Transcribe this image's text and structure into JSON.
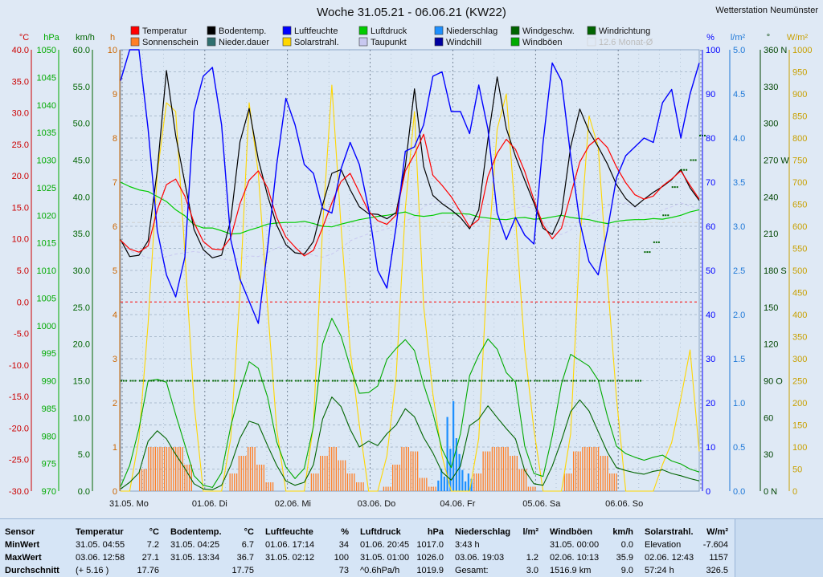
{
  "header": {
    "title": "Woche 31.05.21 - 06.06.21 (KW22)",
    "station": "Wetterstation Neumünster"
  },
  "legend": [
    {
      "label": "Temperatur",
      "color": "#ff0000"
    },
    {
      "label": "Bodentemp.",
      "color": "#000000"
    },
    {
      "label": "Luftfeuchte",
      "color": "#0000ff"
    },
    {
      "label": "Luftdruck",
      "color": "#00cc00"
    },
    {
      "label": "Niederschlag",
      "color": "#1e90ff"
    },
    {
      "label": "Windgeschw.",
      "color": "#006400"
    },
    {
      "label": "Windrichtung",
      "color": "#006400"
    },
    {
      "label": "Sonnenschein",
      "color": "#ff7f27"
    },
    {
      "label": "Nieder.dauer",
      "color": "#2f6f6f"
    },
    {
      "label": "Solarstrahl.",
      "color": "#ffd700"
    },
    {
      "label": "Taupunkt",
      "color": "#c8c8f0"
    },
    {
      "label": "Windchill",
      "color": "#0000a0"
    },
    {
      "label": "Windböen",
      "color": "#00aa00"
    },
    {
      "label": "12.6 Monat-Ø",
      "color": "#cfcfcf"
    }
  ],
  "axis_units": {
    "temp": "°C",
    "press": "hPa",
    "wind": "km/h",
    "sun": "h",
    "hum": "%",
    "rain": "l/m²",
    "dir": "°",
    "solar": "W/m²"
  },
  "chart_data": {
    "type": "line",
    "title": "Woche 31.05.21 - 06.06.21 (KW22)",
    "x_labels": [
      "31.05. Mo",
      "01.06. Di",
      "02.06. Mi",
      "03.06. Do",
      "04.06. Fr",
      "05.06. Sa",
      "06.06. So"
    ],
    "axes": {
      "temp": {
        "unit": "°C",
        "range": [
          -30,
          40
        ],
        "ticks": [
          "40.0",
          "35.0",
          "30.0",
          "25.0",
          "20.0",
          "15.0",
          "10.0",
          "5.0",
          "0.0",
          "-5.0",
          "-10.0",
          "-15.0",
          "-20.0",
          "-25.0",
          "-30.0"
        ]
      },
      "press": {
        "unit": "hPa",
        "range": [
          970,
          1050
        ],
        "ticks": [
          "1050",
          "1045",
          "1040",
          "1035",
          "1030",
          "1025",
          "1020",
          "1015",
          "1010",
          "1005",
          "1000",
          "995",
          "990",
          "985",
          "980",
          "975",
          "970"
        ]
      },
      "wind": {
        "unit": "km/h",
        "range": [
          0,
          60
        ],
        "ticks": [
          "60.0",
          "55.0",
          "50.0",
          "45.0",
          "40.0",
          "35.0",
          "30.0",
          "25.0",
          "20.0",
          "15.0",
          "10.0",
          "5.0",
          "0.0"
        ]
      },
      "sun": {
        "unit": "h",
        "range": [
          0,
          10
        ],
        "ticks": [
          "10",
          "9",
          "8",
          "7",
          "6",
          "5",
          "4",
          "3",
          "2",
          "1",
          "0"
        ]
      },
      "hum": {
        "unit": "%",
        "range": [
          0,
          100
        ],
        "ticks": [
          "100",
          "90",
          "80",
          "70",
          "60",
          "50",
          "40",
          "30",
          "20",
          "10",
          "0"
        ]
      },
      "rain": {
        "unit": "l/m²",
        "range": [
          0,
          5
        ],
        "ticks": [
          "5.0",
          "4.5",
          "4.0",
          "3.5",
          "3.0",
          "2.5",
          "2.0",
          "1.5",
          "1.0",
          "0.5",
          "0.0"
        ]
      },
      "dir": {
        "unit": "°",
        "range": [
          0,
          360
        ],
        "ticks": [
          "360 N",
          "330",
          "300",
          "270 W",
          "240",
          "210",
          "180 S",
          "150",
          "120",
          "90 O",
          "60",
          "30",
          "0 N"
        ]
      },
      "solar": {
        "unit": "W/m²",
        "range": [
          0,
          1000
        ],
        "ticks": [
          "1000",
          "950",
          "900",
          "850",
          "800",
          "750",
          "700",
          "650",
          "600",
          "550",
          "500",
          "450",
          "400",
          "350",
          "300",
          "250",
          "200",
          "150",
          "100",
          "50",
          "0"
        ]
      }
    },
    "series": [
      {
        "name": "Temperatur",
        "axis": "temp",
        "color": "#ff0000",
        "values": [
          9.8,
          8.4,
          7.9,
          8.9,
          14.6,
          18.6,
          19.5,
          16.8,
          12.6,
          9.6,
          8.4,
          8.3,
          10.2,
          15.6,
          19.3,
          20.8,
          18.1,
          13.4,
          10.3,
          8.7,
          7.3,
          8.2,
          11.8,
          15.7,
          19.1,
          20.4,
          17.4,
          14.4,
          12.9,
          12.3,
          13.8,
          20.8,
          23.4,
          26.6,
          20.1,
          18.5,
          16.7,
          14.3,
          11.9,
          13.1,
          19.9,
          23.6,
          25.8,
          24.2,
          20.7,
          16.2,
          12.2,
          10.0,
          11.7,
          17.0,
          22.2,
          24.8,
          26.0,
          24.5,
          21.4,
          18.9,
          17.0,
          16.3,
          16.8,
          18.4,
          19.5,
          20.8,
          18.5,
          16.3
        ]
      },
      {
        "name": "Bodentemp.",
        "axis": "temp",
        "color": "#000000",
        "values": [
          9.9,
          7.2,
          7.4,
          9.7,
          20.9,
          36.7,
          26.4,
          18.9,
          11.5,
          8.3,
          7.0,
          7.4,
          13.0,
          25.4,
          30.7,
          22.6,
          16.9,
          12.2,
          9.1,
          7.8,
          7.6,
          9.6,
          15.4,
          20.4,
          21.0,
          17.8,
          15.1,
          14.0,
          13.9,
          13.2,
          14.2,
          21.5,
          33.8,
          21.5,
          16.9,
          15.6,
          14.6,
          13.4,
          11.6,
          14.6,
          25.8,
          35.7,
          27.5,
          23.1,
          19.3,
          15.7,
          11.7,
          10.7,
          14.0,
          24.6,
          30.6,
          27.1,
          24.6,
          21.9,
          18.6,
          16.4,
          15.1,
          16.3,
          17.4,
          18.3,
          19.4,
          21.0,
          18.1,
          16.1
        ]
      },
      {
        "name": "Luftfeuchte",
        "axis": "hum",
        "color": "#0000ff",
        "values": [
          93,
          100,
          100,
          82,
          59,
          49,
          44,
          53,
          86,
          94,
          96,
          83,
          57,
          48,
          43,
          38,
          55,
          74,
          89,
          83,
          74,
          72,
          64,
          63,
          73,
          79,
          74,
          64,
          50,
          46,
          60,
          77,
          78,
          83,
          94,
          95,
          86,
          86,
          81,
          92,
          82,
          63,
          57,
          62,
          58,
          56,
          79,
          97,
          93,
          76,
          61,
          52,
          49,
          59,
          71,
          76,
          78,
          80,
          79,
          88,
          91,
          80,
          90,
          97
        ]
      },
      {
        "name": "Luftdruck",
        "axis": "press",
        "color": "#00cc00",
        "values": [
          1026.0,
          1025.2,
          1024.6,
          1024.3,
          1023.4,
          1022.5,
          1021.0,
          1019.9,
          1018.3,
          1017.7,
          1017.7,
          1017.2,
          1016.6,
          1016.7,
          1017.3,
          1017.8,
          1018.4,
          1018.6,
          1018.7,
          1018.7,
          1018.9,
          1018.5,
          1018.0,
          1017.9,
          1018.4,
          1018.8,
          1019.2,
          1019.5,
          1019.8,
          1020.0,
          1020.3,
          1020.6,
          1020.0,
          1019.8,
          1020.0,
          1020.4,
          1020.4,
          1020.3,
          1020.2,
          1019.7,
          1019.5,
          1019.3,
          1019.2,
          1019.5,
          1019.6,
          1019.3,
          1019.4,
          1019.7,
          1020.0,
          1019.6,
          1019.4,
          1019.2,
          1018.8,
          1018.5,
          1018.9,
          1019.1,
          1019.2,
          1019.2,
          1019.4,
          1019.3,
          1019.6,
          1020.0,
          1020.6,
          1021.0
        ]
      },
      {
        "name": "Solarstrahl.",
        "axis": "solar",
        "color": "#ffd700",
        "values": [
          0,
          0,
          120,
          380,
          720,
          880,
          860,
          540,
          200,
          0,
          0,
          0,
          120,
          450,
          880,
          720,
          420,
          140,
          0,
          0,
          0,
          150,
          600,
          920,
          600,
          320,
          150,
          0,
          0,
          80,
          260,
          640,
          860,
          420,
          220,
          80,
          0,
          0,
          0,
          120,
          530,
          820,
          900,
          620,
          320,
          140,
          0,
          0,
          0,
          130,
          560,
          850,
          780,
          480,
          210,
          0,
          0,
          0,
          0,
          60,
          110,
          210,
          320,
          90
        ]
      },
      {
        "name": "Windgeschw.",
        "axis": "wind",
        "color": "#006400",
        "values": [
          0.3,
          1.2,
          2.5,
          6.8,
          8.2,
          7.1,
          5.0,
          3.1,
          1.0,
          0.3,
          0.2,
          0.8,
          3.5,
          7.2,
          9.5,
          9.1,
          6.2,
          3.5,
          1.4,
          0.8,
          1.2,
          3.6,
          9.8,
          12.8,
          11.5,
          8.4,
          6.0,
          6.8,
          6.2,
          7.8,
          9.0,
          11.2,
          10.1,
          7.3,
          5.2,
          2.6,
          1.5,
          3.4,
          8.9,
          9.8,
          11.6,
          10.0,
          8.5,
          7.1,
          2.8,
          1.0,
          0.8,
          3.4,
          6.9,
          10.8,
          12.4,
          10.9,
          8.1,
          5.3,
          3.2,
          2.8,
          2.5,
          2.3,
          2.7,
          2.9,
          2.4,
          2.1,
          1.7,
          1.4
        ]
      },
      {
        "name": "Windböen",
        "axis": "wind",
        "color": "#00aa00",
        "values": [
          0.6,
          3.5,
          8.5,
          15.0,
          15.2,
          14.8,
          10.4,
          6.3,
          2.1,
          0.8,
          0.5,
          2.5,
          8.8,
          13.6,
          17.6,
          16.7,
          12.8,
          6.7,
          3.3,
          1.7,
          3.1,
          8.8,
          20.0,
          23.5,
          21.1,
          16.9,
          13.3,
          13.4,
          14.3,
          17.9,
          19.4,
          20.6,
          19.1,
          14.5,
          10.6,
          5.7,
          3.2,
          7.8,
          15.7,
          18.5,
          20.7,
          19.3,
          16.1,
          14.8,
          6.1,
          2.4,
          2.0,
          7.5,
          14.6,
          18.6,
          17.8,
          17.0,
          15.1,
          10.2,
          6.1,
          5.1,
          4.6,
          4.2,
          4.6,
          4.9,
          4.1,
          3.7,
          3.0,
          2.6
        ]
      },
      {
        "name": "Sonnenschein",
        "axis": "sun",
        "color": "#ff7f27",
        "values": [
          0,
          0,
          0.5,
          1.0,
          1.0,
          1.0,
          1.0,
          0.6,
          0,
          0,
          0,
          0,
          0.4,
          0.8,
          1.0,
          0.6,
          0.2,
          0,
          0,
          0,
          0,
          0.4,
          0.8,
          1.0,
          0.7,
          0.4,
          0.2,
          0,
          0,
          0.1,
          0.6,
          1.0,
          0.9,
          0.3,
          0.1,
          0,
          0,
          0,
          0,
          0.4,
          0.9,
          1.0,
          1.0,
          0.8,
          0.5,
          0.1,
          0,
          0,
          0,
          0.4,
          0.9,
          1.0,
          1.0,
          0.8,
          0.4,
          0,
          0,
          0,
          0,
          0,
          0,
          0,
          0,
          0
        ]
      },
      {
        "name": "Niederschlag",
        "axis": "rain",
        "color": "#1e90ff",
        "values": [
          0,
          0,
          0,
          0,
          0,
          0,
          0,
          0,
          0,
          0,
          0,
          0,
          0,
          0,
          0,
          0,
          0,
          0,
          0,
          0,
          0,
          0,
          0,
          0,
          0,
          0,
          0,
          0,
          0,
          0,
          0,
          0,
          0,
          0,
          0,
          0.3,
          1.2,
          0.6,
          0.2,
          0,
          0,
          0,
          0,
          0,
          0,
          0,
          0,
          0,
          0,
          0,
          0,
          0,
          0,
          0,
          0,
          0,
          0,
          0,
          0,
          0,
          0,
          0,
          0,
          0
        ]
      },
      {
        "name": "Windrichtung",
        "axis": "dir",
        "color": "#006400",
        "values": [
          90,
          90,
          90,
          90,
          90,
          90,
          90,
          90,
          90,
          90,
          90,
          90,
          90,
          90,
          90,
          90,
          90,
          90,
          90,
          90,
          90,
          90,
          90,
          90,
          90,
          90,
          90,
          90,
          90,
          90,
          90,
          90,
          90,
          90,
          90,
          90,
          90,
          90,
          90,
          90,
          90,
          90,
          90,
          90,
          90,
          90,
          90,
          90,
          90,
          90,
          90,
          90,
          90,
          90,
          90,
          90,
          90,
          195,
          203,
          225,
          248,
          262,
          270,
          290
        ]
      },
      {
        "name": "Taupunkt",
        "axis": "temp",
        "color": "#c8c8f0",
        "values": [
          8.6,
          8.1,
          7.5,
          7.0,
          6.9,
          7.2,
          7.6,
          7.8,
          8.0,
          7.8,
          7.4,
          6.8,
          6.6,
          6.9,
          7.3,
          7.2,
          7.8,
          8.6,
          8.9,
          8.4,
          7.9,
          7.4,
          7.1,
          7.6,
          8.5,
          9.7,
          10.3,
          10.8,
          11.2,
          11.6,
          12.1,
          12.8,
          13.5,
          15.1,
          15.8,
          15.9,
          15.3,
          14.6,
          13.3,
          12.8,
          12.9,
          13.3,
          14.2,
          14.8,
          15.2,
          14.8,
          12.7,
          10.8,
          10.7,
          11.4,
          12.8,
          13.7,
          14.6,
          15.2,
          15.6,
          15.7,
          15.0,
          14.1,
          13.9,
          14.6,
          15.1,
          15.7,
          15.2,
          14.8
        ]
      },
      {
        "name": "12.6 Monat-Ø",
        "axis": "temp",
        "color": "#cfcfcf",
        "values": [
          12.6,
          12.6
        ]
      }
    ]
  },
  "stats": {
    "sensor": {
      "title": "Sensor",
      "unit": "",
      "rows": [
        "MinWert",
        "MaxWert",
        "Durchschnitt"
      ]
    },
    "columns": [
      {
        "title": "Temperatur",
        "unit": "°C",
        "rows": [
          [
            "31.05.  04:55",
            "7.2"
          ],
          [
            "03.06.  12:58",
            "27.1"
          ],
          [
            "(+ 5.16 )",
            "17.76"
          ]
        ]
      },
      {
        "title": "Bodentemp.",
        "unit": "°C",
        "rows": [
          [
            "31.05.  04:25",
            "6.7"
          ],
          [
            "31.05.  13:34",
            "36.7"
          ],
          [
            "",
            "17.75"
          ]
        ]
      },
      {
        "title": "Luftfeuchte",
        "unit": "%",
        "rows": [
          [
            "01.06.  17:14",
            "34"
          ],
          [
            "31.05.  02:12",
            "100"
          ],
          [
            "",
            "73"
          ]
        ]
      },
      {
        "title": "Luftdruck",
        "unit": "hPa",
        "rows": [
          [
            "01.06.  20:45",
            "1017.0"
          ],
          [
            "31.05.  01:00",
            "1026.0"
          ],
          [
            "^0.6hPa/h",
            "1019.9"
          ]
        ]
      },
      {
        "title": "Niederschlag",
        "unit": "l/m²",
        "rows": [
          [
            "3:43 h",
            ""
          ],
          [
            "03.06.  19:03",
            "1.2"
          ],
          [
            "Gesamt:",
            "3.0"
          ]
        ]
      },
      {
        "title": "Windböen",
        "unit": "km/h",
        "rows": [
          [
            "31.05.  00:00",
            "0.0"
          ],
          [
            "02.06.  10:13",
            "35.9"
          ],
          [
            "1516.9 km",
            "9.0"
          ]
        ]
      },
      {
        "title": "Solarstrahl.",
        "unit": "W/m²",
        "rows": [
          [
            "Elevation",
            "-7.604"
          ],
          [
            "02.06.  12:43",
            "1157"
          ],
          [
            "57:24 h",
            "326.5"
          ]
        ]
      }
    ]
  }
}
